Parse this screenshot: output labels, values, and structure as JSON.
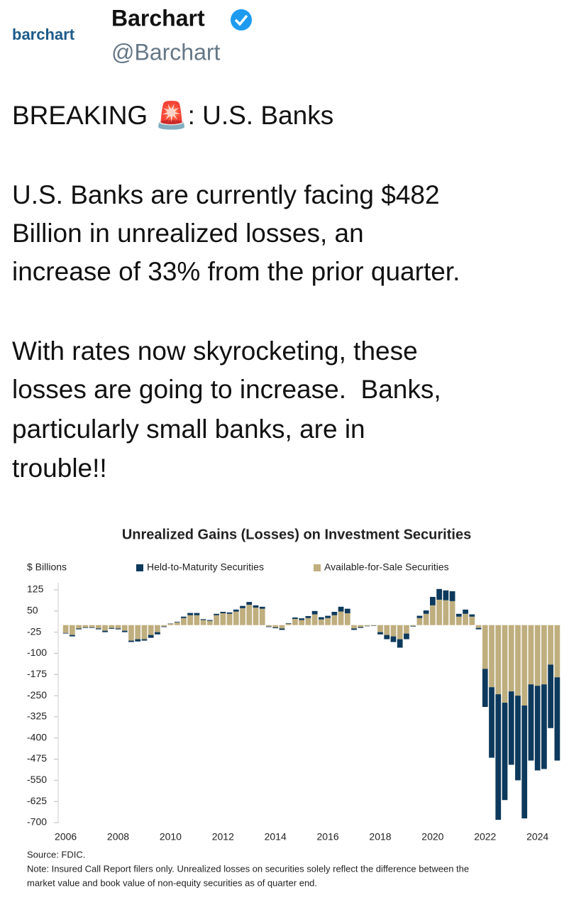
{
  "tweet": {
    "logo": "barchart",
    "name": "Barchart",
    "handle": "@Barchart",
    "paragraphs": [
      [
        "BREAKING 🚨: U.S. Banks"
      ],
      [
        "U.S. Banks are currently facing $482",
        "Billion in unrealized losses, an",
        "increase of 33% from the prior quarter."
      ],
      [
        "With rates now skyrocketing, these",
        "losses are going to increase.  Banks,",
        "particularly small banks, are in",
        "trouble!!"
      ]
    ]
  },
  "chart_data": {
    "type": "stacked_bar",
    "title": "Unrealized Gains (Losses) on Investment Securities",
    "y_label": "$ Billions",
    "categories": [
      "2006",
      null,
      null,
      null,
      null,
      null,
      null,
      null,
      "2008",
      null,
      null,
      null,
      null,
      null,
      null,
      null,
      "2010",
      null,
      null,
      null,
      null,
      null,
      null,
      null,
      "2012",
      null,
      null,
      null,
      null,
      null,
      null,
      null,
      "2014",
      null,
      null,
      null,
      null,
      null,
      null,
      null,
      "2016",
      null,
      null,
      null,
      null,
      null,
      null,
      null,
      "2018",
      null,
      null,
      null,
      null,
      null,
      null,
      null,
      "2020",
      null,
      null,
      null,
      null,
      null,
      null,
      null,
      "2022",
      null,
      null,
      null,
      null,
      null,
      null,
      null,
      "2024",
      null,
      null,
      null
    ],
    "series": [
      {
        "name": "Held-to-Maturity Securities",
        "color": "#0d3a5c",
        "values": [
          -2,
          -5,
          -3,
          -2,
          -2,
          -3,
          -5,
          -3,
          -3,
          -5,
          -5,
          -8,
          -5,
          -10,
          -8,
          -2,
          1,
          2,
          5,
          8,
          8,
          3,
          3,
          5,
          5,
          5,
          7,
          8,
          10,
          8,
          7,
          -2,
          -3,
          -5,
          2,
          5,
          6,
          7,
          12,
          8,
          8,
          12,
          17,
          16,
          -5,
          -3,
          -1,
          -1,
          -8,
          -15,
          -20,
          -30,
          -20,
          -2,
          8,
          12,
          30,
          38,
          35,
          35,
          10,
          15,
          8,
          -5,
          -135,
          -250,
          -445,
          -345,
          -260,
          -300,
          -400,
          -270,
          -300,
          -300,
          -225,
          -295
        ]
      },
      {
        "name": "Available-for-Sale Securities",
        "color": "#bfae7e",
        "values": [
          -28,
          -35,
          -12,
          -8,
          -8,
          -12,
          -20,
          -10,
          -12,
          -20,
          -55,
          -50,
          -50,
          -35,
          -25,
          -5,
          5,
          10,
          25,
          35,
          35,
          18,
          15,
          35,
          42,
          40,
          48,
          60,
          72,
          62,
          58,
          -5,
          -8,
          -12,
          5,
          22,
          18,
          25,
          38,
          20,
          25,
          35,
          48,
          42,
          -12,
          -7,
          -3,
          -2,
          -25,
          -35,
          -40,
          -50,
          -30,
          -3,
          25,
          40,
          70,
          90,
          88,
          85,
          30,
          40,
          30,
          -10,
          -155,
          -220,
          -245,
          -275,
          -235,
          -250,
          -285,
          -210,
          -215,
          -210,
          -140,
          -185
        ]
      }
    ],
    "stack_order": [
      1,
      0
    ],
    "ylim": [
      -700,
      125
    ],
    "yticks": [
      125,
      50,
      -25,
      -100,
      -175,
      -250,
      -325,
      -400,
      -475,
      -550,
      -625,
      -700
    ],
    "source": "Source: FDIC.",
    "note": [
      "Note: Insured Call Report filers only. Unrealized losses on securities solely reflect the difference between the",
      "market value and book value of non-equity securities as of quarter end."
    ]
  }
}
